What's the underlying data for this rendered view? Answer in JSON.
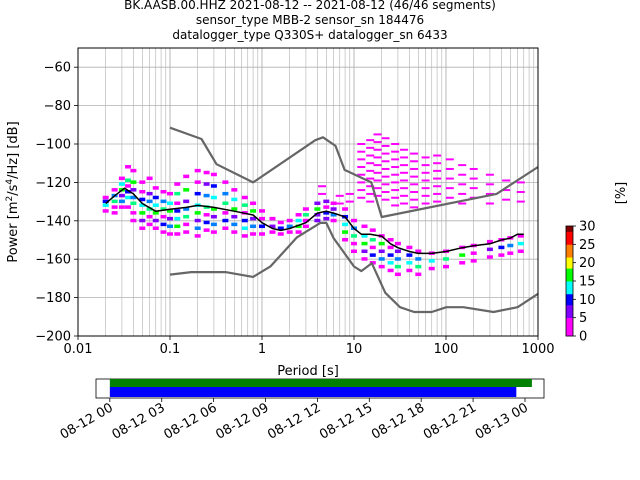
{
  "header": {
    "title_line1": "BK.AASB.00.HHZ   2021-08-12 -- 2021-08-12  (46/46 segments)",
    "title_line2": "sensor_type MBB-2 sensor_sn 184476",
    "title_line3": "datalogger_type Q330S+ datalogger_sn 6433"
  },
  "chart_data": [
    {
      "type": "heatmap",
      "title": "BK.AASB.00.HHZ   2021-08-12 -- 2021-08-12  (46/46 segments)",
      "xlabel": "Period [s]",
      "ylabel_parts": [
        "Power [m",
        "2",
        "/s",
        "4",
        "/Hz] [dB]"
      ],
      "x_scale": "log",
      "xlim": [
        0.01,
        1000
      ],
      "ylim": [
        -200,
        -50
      ],
      "xticks": [
        {
          "value": 0.01,
          "label": "0.01"
        },
        {
          "value": 0.1,
          "label": "0.1"
        },
        {
          "value": 1,
          "label": "1"
        },
        {
          "value": 10,
          "label": "10"
        },
        {
          "value": 100,
          "label": "100"
        },
        {
          "value": 1000,
          "label": "1000"
        }
      ],
      "yticks": [
        {
          "value": -60,
          "label": "−60"
        },
        {
          "value": -80,
          "label": "−80"
        },
        {
          "value": -100,
          "label": "−100"
        },
        {
          "value": -120,
          "label": "−120"
        },
        {
          "value": -140,
          "label": "−140"
        },
        {
          "value": -160,
          "label": "−160"
        },
        {
          "value": -180,
          "label": "−180"
        },
        {
          "value": -200,
          "label": "−200"
        }
      ],
      "grid": true,
      "colorbar": {
        "label": "[%]",
        "range": [
          0,
          30
        ],
        "ticks": [
          {
            "value": 0,
            "label": "0"
          },
          {
            "value": 5,
            "label": "5"
          },
          {
            "value": 10,
            "label": "10"
          },
          {
            "value": 15,
            "label": "15"
          },
          {
            "value": 20,
            "label": "20"
          },
          {
            "value": 25,
            "label": "25"
          },
          {
            "value": 30,
            "label": "30"
          }
        ],
        "colormap": [
          "#ffffff",
          "#ff00ff",
          "#8000ff",
          "#0000ff",
          "#00ffff",
          "#00ff00",
          "#ffff00",
          "#ff8000",
          "#ff0000",
          "#800000"
        ]
      },
      "noise_models": {
        "color": "#666666",
        "high": {
          "periods": [
            0.1,
            0.22,
            0.32,
            0.8,
            3.8,
            4.6,
            6.3,
            7.9,
            15.4,
            20,
            354.8,
            1000
          ],
          "values": [
            -91.5,
            -97.4,
            -110.5,
            -120,
            -98,
            -96.5,
            -101,
            -113.5,
            -120,
            -138,
            -126,
            -112
          ]
        },
        "low": {
          "periods": [
            0.1,
            0.17,
            0.4,
            0.8,
            1.24,
            2.4,
            4.3,
            5.0,
            6.0,
            10.0,
            12.0,
            15.6,
            21.9,
            31.6,
            45,
            70,
            101,
            154,
            328,
            600,
            1000
          ],
          "values": [
            -168,
            -166.7,
            -166.7,
            -169.2,
            -163.7,
            -148.6,
            -141.1,
            -141.1,
            -149,
            -163.8,
            -166.2,
            -162.1,
            -177.5,
            -185,
            -187.5,
            -187.5,
            -185,
            -185,
            -187.5,
            -185,
            -178
          ]
        }
      },
      "mode_line": {
        "color": "#000000",
        "periods": [
          0.02,
          0.025,
          0.032,
          0.04,
          0.05,
          0.07,
          0.1,
          0.15,
          0.2,
          0.3,
          0.5,
          0.8,
          1.0,
          1.3,
          1.6,
          2.0,
          3.0,
          4.0,
          5.0,
          6.0,
          8.0,
          10,
          12,
          15,
          20,
          25,
          30,
          40,
          50,
          70,
          100,
          150,
          200,
          300,
          400,
          500,
          600,
          700
        ],
        "values": [
          -131,
          -127,
          -123,
          -126,
          -131,
          -135,
          -134,
          -133,
          -132,
          -133,
          -135,
          -137,
          -141,
          -144,
          -145,
          -144,
          -141,
          -136,
          -135,
          -136,
          -138,
          -144,
          -147,
          -147,
          -148,
          -152,
          -154,
          -156,
          -157,
          -157,
          -156,
          -154,
          -153,
          -152,
          -150,
          -149,
          -147,
          -147
        ]
      },
      "density": [
        {
          "period": 0.02,
          "values": [
            -128,
            -130,
            -132,
            -135
          ],
          "level": 12
        },
        {
          "period": 0.025,
          "values": [
            -124,
            -127,
            -130,
            -133,
            -136
          ],
          "level": 12
        },
        {
          "period": 0.03,
          "values": [
            -118,
            -121,
            -124,
            -127,
            -130,
            -133
          ],
          "level": 12
        },
        {
          "period": 0.035,
          "values": [
            -112,
            -119,
            -122,
            -125,
            -128,
            -133
          ],
          "level": 10
        },
        {
          "period": 0.04,
          "values": [
            -114,
            -120,
            -124,
            -128,
            -131,
            -136,
            -140
          ],
          "level": 10
        },
        {
          "period": 0.05,
          "values": [
            -120,
            -125,
            -129,
            -132,
            -136,
            -140,
            -144
          ],
          "level": 10
        },
        {
          "period": 0.06,
          "values": [
            -118,
            -126,
            -130,
            -134,
            -138,
            -142
          ],
          "level": 10
        },
        {
          "period": 0.07,
          "values": [
            -123,
            -128,
            -132,
            -136,
            -140,
            -144
          ],
          "level": 11
        },
        {
          "period": 0.085,
          "values": [
            -125,
            -130,
            -134,
            -138,
            -142,
            -146
          ],
          "level": 11
        },
        {
          "period": 0.1,
          "values": [
            -126,
            -131,
            -135,
            -139,
            -143,
            -147
          ],
          "level": 11
        },
        {
          "period": 0.12,
          "values": [
            -121,
            -126,
            -131,
            -135,
            -139,
            -143,
            -147
          ],
          "level": 11
        },
        {
          "period": 0.15,
          "values": [
            -117,
            -124,
            -130,
            -134,
            -138,
            -142,
            -146
          ],
          "level": 10
        },
        {
          "period": 0.2,
          "values": [
            -114,
            -120,
            -126,
            -132,
            -136,
            -140,
            -144,
            -148
          ],
          "level": 10
        },
        {
          "period": 0.25,
          "values": [
            -115,
            -121,
            -127,
            -133,
            -137,
            -141,
            -145
          ],
          "level": 10
        },
        {
          "period": 0.3,
          "values": [
            -116,
            -122,
            -128,
            -134,
            -138,
            -142,
            -146
          ],
          "level": 10
        },
        {
          "period": 0.4,
          "values": [
            -120,
            -126,
            -131,
            -136,
            -140,
            -144
          ],
          "level": 11
        },
        {
          "period": 0.5,
          "values": [
            -124,
            -129,
            -134,
            -138,
            -142,
            -146
          ],
          "level": 11
        },
        {
          "period": 0.65,
          "values": [
            -128,
            -132,
            -136,
            -140,
            -144,
            -148
          ],
          "level": 12
        },
        {
          "period": 0.8,
          "values": [
            -131,
            -135,
            -139,
            -143,
            -147
          ],
          "level": 12
        },
        {
          "period": 1.0,
          "values": [
            -135,
            -139,
            -143,
            -147
          ],
          "level": 13
        },
        {
          "period": 1.3,
          "values": [
            -139,
            -143,
            -146
          ],
          "level": 14
        },
        {
          "period": 1.6,
          "values": [
            -141,
            -144,
            -147
          ],
          "level": 14
        },
        {
          "period": 2.0,
          "values": [
            -140,
            -143,
            -146
          ],
          "level": 13
        },
        {
          "period": 2.5,
          "values": [
            -137,
            -140,
            -143,
            -146
          ],
          "level": 12
        },
        {
          "period": 3.0,
          "values": [
            -134,
            -137,
            -140,
            -143
          ],
          "level": 14
        },
        {
          "period": 4.0,
          "values": [
            -131,
            -134,
            -137,
            -140
          ],
          "level": 15
        },
        {
          "period": 5.0,
          "values": [
            -130,
            -133,
            -136,
            -139
          ],
          "level": 16
        },
        {
          "period": 6.0,
          "values": [
            -131,
            -134,
            -137,
            -140
          ],
          "level": 14
        },
        {
          "period": 8.0,
          "values": [
            -134,
            -138,
            -142,
            -146,
            -150
          ],
          "level": 11
        },
        {
          "period": 10,
          "values": [
            -140,
            -144,
            -148,
            -152,
            -156
          ],
          "level": 10
        },
        {
          "period": 13,
          "values": [
            -143,
            -148,
            -152,
            -156,
            -160
          ],
          "level": 10
        },
        {
          "period": 16,
          "values": [
            -145,
            -150,
            -154,
            -158,
            -162
          ],
          "level": 9
        },
        {
          "period": 20,
          "values": [
            -148,
            -152,
            -156,
            -160,
            -164
          ],
          "level": 9
        },
        {
          "period": 25,
          "values": [
            -150,
            -154,
            -158,
            -162,
            -166
          ],
          "level": 9
        },
        {
          "period": 30,
          "values": [
            -152,
            -156,
            -160,
            -164,
            -168
          ],
          "level": 9
        },
        {
          "period": 40,
          "values": [
            -154,
            -158,
            -162,
            -166
          ],
          "level": 10
        },
        {
          "period": 50,
          "values": [
            -156,
            -160,
            -164,
            -168
          ],
          "level": 10
        },
        {
          "period": 70,
          "values": [
            -157,
            -161,
            -165
          ],
          "level": 12
        },
        {
          "period": 100,
          "values": [
            -156,
            -160,
            -164
          ],
          "level": 12
        },
        {
          "period": 150,
          "values": [
            -154,
            -158,
            -162
          ],
          "level": 13
        },
        {
          "period": 200,
          "values": [
            -153,
            -157,
            -161
          ],
          "level": 13
        },
        {
          "period": 300,
          "values": [
            -151,
            -155,
            -159
          ],
          "level": 14
        },
        {
          "period": 400,
          "values": [
            -150,
            -154,
            -158
          ],
          "level": 14
        },
        {
          "period": 500,
          "values": [
            -149,
            -153,
            -157
          ],
          "level": 14
        },
        {
          "period": 650,
          "values": [
            -148,
            -152,
            -156
          ],
          "level": 14
        }
      ],
      "sparse": [
        {
          "period": 12,
          "values": [
            -100,
            -104,
            -108,
            -112,
            -116,
            -120,
            -124,
            -128
          ]
        },
        {
          "period": 15,
          "values": [
            -98,
            -102,
            -106,
            -110,
            -114,
            -118,
            -122,
            -126,
            -130
          ]
        },
        {
          "period": 18,
          "values": [
            -95,
            -99,
            -103,
            -107,
            -111,
            -115,
            -119,
            -123,
            -127
          ]
        },
        {
          "period": 22,
          "values": [
            -97,
            -101,
            -105,
            -109,
            -113,
            -117,
            -121,
            -125,
            -129
          ]
        },
        {
          "period": 28,
          "values": [
            -100,
            -104,
            -108,
            -112,
            -116,
            -120,
            -124,
            -128,
            -132
          ]
        },
        {
          "period": 35,
          "values": [
            -103,
            -107,
            -111,
            -115,
            -119,
            -123,
            -127,
            -131
          ]
        },
        {
          "period": 45,
          "values": [
            -105,
            -109,
            -113,
            -117,
            -121,
            -125,
            -129,
            -133
          ]
        },
        {
          "period": 60,
          "values": [
            -107,
            -111,
            -115,
            -119,
            -123,
            -127,
            -131
          ]
        },
        {
          "period": 80,
          "values": [
            -106,
            -110,
            -114,
            -118,
            -122,
            -126,
            -130
          ]
        },
        {
          "period": 110,
          "values": [
            -108,
            -113,
            -118,
            -123,
            -128
          ]
        },
        {
          "period": 150,
          "values": [
            -111,
            -116,
            -121,
            -126,
            -131
          ]
        },
        {
          "period": 200,
          "values": [
            -113,
            -118,
            -123,
            -128
          ]
        },
        {
          "period": 300,
          "values": [
            -116,
            -121,
            -126,
            -131
          ]
        },
        {
          "period": 450,
          "values": [
            -119,
            -124,
            -129
          ]
        },
        {
          "period": 650,
          "values": [
            -120,
            -125,
            -130
          ]
        },
        {
          "period": 4.5,
          "values": [
            -122,
            -126
          ]
        },
        {
          "period": 7,
          "values": [
            -127,
            -131
          ]
        },
        {
          "period": 9,
          "values": [
            -126,
            -130
          ]
        }
      ]
    },
    {
      "type": "bar",
      "title": "",
      "xtick_labels": [
        "08-12 00",
        "08-12 03",
        "08-12 06",
        "08-12 09",
        "08-12 12",
        "08-12 15",
        "08-12 18",
        "08-12 21",
        "08-13 00"
      ],
      "xlim_hours": [
        -0.8,
        25.1
      ],
      "bars": [
        {
          "start_hour": 0,
          "end_hour": 24.4,
          "color": "#008000"
        },
        {
          "start_hour": 0,
          "end_hour": 23.5,
          "color": "#0000ff"
        }
      ]
    }
  ]
}
